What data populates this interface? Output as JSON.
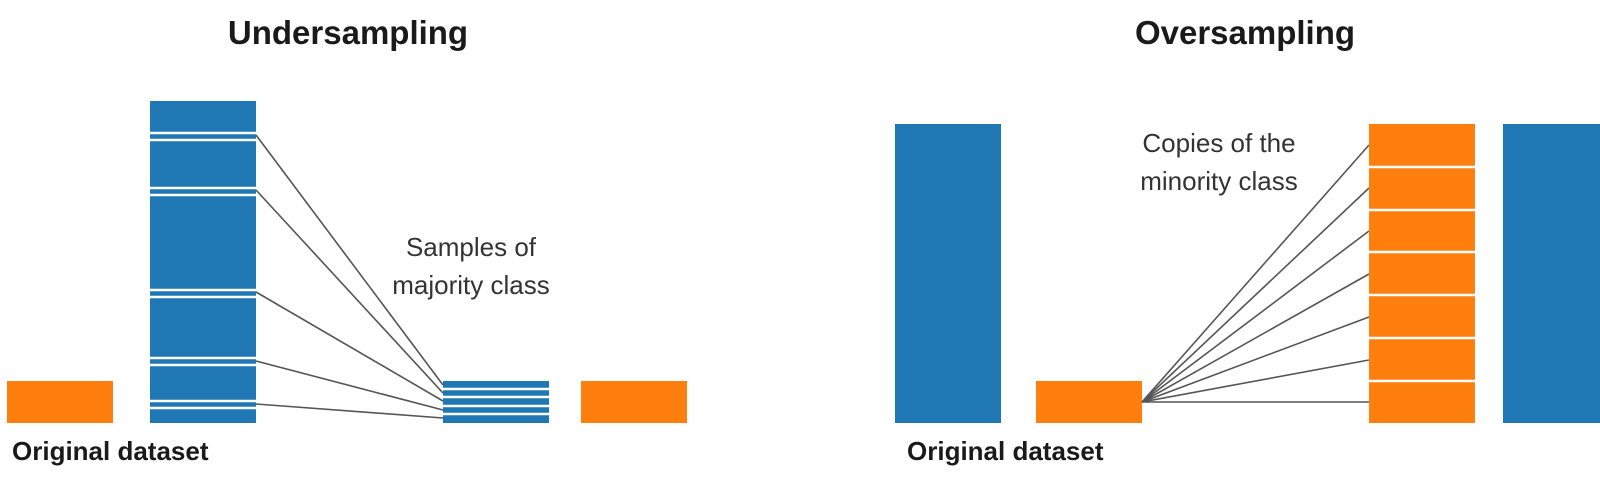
{
  "colors": {
    "majority": "#1f77b4",
    "minority": "#ff7f0e",
    "link": "#555555"
  },
  "undersampling": {
    "title": "Undersampling",
    "dataset_label": "Original dataset",
    "note_lines": [
      "Samples of",
      "majority class"
    ]
  },
  "oversampling": {
    "title": "Oversampling",
    "dataset_label": "Original dataset",
    "note_lines": [
      "Copies of the",
      "minority class"
    ]
  }
}
